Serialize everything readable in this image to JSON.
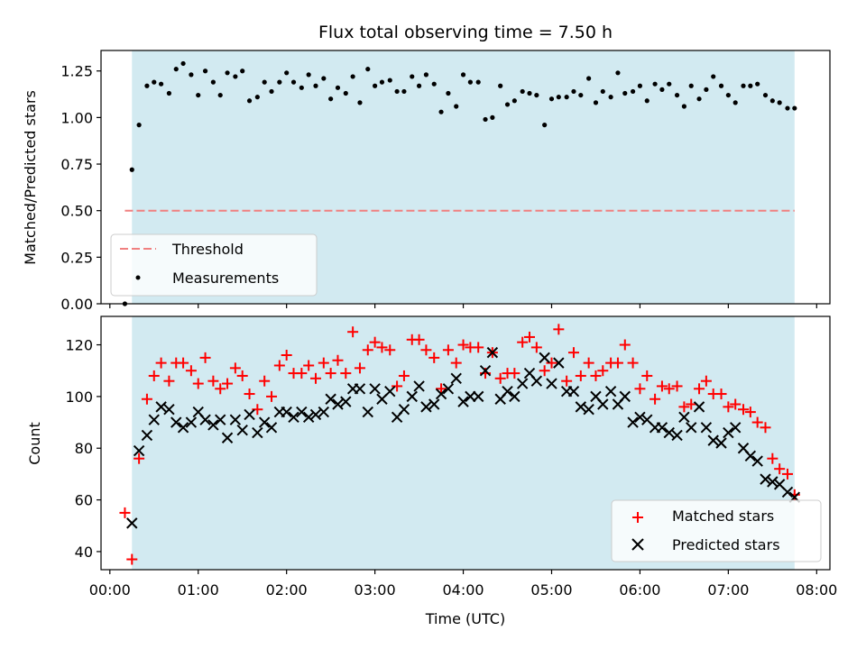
{
  "chart_data": [
    {
      "type": "scatter",
      "title": "Flux total observing time = 7.50 h",
      "xlabel": "",
      "ylabel": "Matched/Predicted stars",
      "xlim": [
        -0.1,
        8.15
      ],
      "ylim": [
        0.0,
        1.36
      ],
      "span": [
        0.25,
        7.75
      ],
      "yticks": [
        0.0,
        0.25,
        0.5,
        0.75,
        1.0,
        1.25
      ],
      "ytick_labels": [
        "0.00",
        "0.25",
        "0.50",
        "0.75",
        "1.00",
        "1.25"
      ],
      "threshold": {
        "name": "Threshold",
        "value": 0.5,
        "x": [
          0.17,
          7.75
        ],
        "color": "#f08080"
      },
      "series": [
        {
          "name": "Measurements",
          "color": "#000000",
          "x": [
            0.17,
            0.25,
            0.33,
            0.42,
            0.5,
            0.58,
            0.67,
            0.75,
            0.83,
            0.92,
            1.0,
            1.08,
            1.17,
            1.25,
            1.33,
            1.42,
            1.5,
            1.58,
            1.67,
            1.75,
            1.83,
            1.92,
            2.0,
            2.08,
            2.17,
            2.25,
            2.33,
            2.42,
            2.5,
            2.58,
            2.67,
            2.75,
            2.83,
            2.92,
            3.0,
            3.08,
            3.17,
            3.25,
            3.33,
            3.42,
            3.5,
            3.58,
            3.67,
            3.75,
            3.83,
            3.92,
            4.0,
            4.08,
            4.17,
            4.25,
            4.33,
            4.42,
            4.5,
            4.58,
            4.67,
            4.75,
            4.83,
            4.92,
            5.0,
            5.08,
            5.17,
            5.25,
            5.33,
            5.42,
            5.5,
            5.58,
            5.67,
            5.75,
            5.83,
            5.92,
            6.0,
            6.08,
            6.17,
            6.25,
            6.33,
            6.42,
            6.5,
            6.58,
            6.67,
            6.75,
            6.83,
            6.92,
            7.0,
            7.08,
            7.17,
            7.25,
            7.33,
            7.42,
            7.5,
            7.58,
            7.67,
            7.75
          ],
          "y": [
            0.0,
            0.72,
            0.96,
            1.17,
            1.19,
            1.18,
            1.13,
            1.26,
            1.29,
            1.23,
            1.12,
            1.25,
            1.19,
            1.12,
            1.24,
            1.22,
            1.25,
            1.09,
            1.11,
            1.19,
            1.14,
            1.19,
            1.24,
            1.19,
            1.16,
            1.23,
            1.17,
            1.21,
            1.1,
            1.16,
            1.13,
            1.22,
            1.08,
            1.26,
            1.17,
            1.19,
            1.2,
            1.14,
            1.14,
            1.22,
            1.17,
            1.23,
            1.18,
            1.03,
            1.13,
            1.06,
            1.23,
            1.19,
            1.19,
            0.99,
            1.0,
            1.17,
            1.07,
            1.09,
            1.14,
            1.13,
            1.12,
            0.96,
            1.1,
            1.11,
            1.11,
            1.14,
            1.12,
            1.21,
            1.08,
            1.14,
            1.11,
            1.24,
            1.13,
            1.14,
            1.17,
            1.09,
            1.18,
            1.15,
            1.18,
            1.12,
            1.06,
            1.17,
            1.1,
            1.15,
            1.22,
            1.17,
            1.12,
            1.08,
            1.17,
            1.17,
            1.18,
            1.12,
            1.09,
            1.08,
            1.05,
            1.05
          ]
        }
      ],
      "legend": [
        "Threshold",
        "Measurements"
      ],
      "legend_location": "lower-left",
      "span_color": "#add8e6"
    },
    {
      "type": "scatter",
      "title": "",
      "xlabel": "Time (UTC)",
      "ylabel": "Count",
      "xlim": [
        -0.1,
        8.15
      ],
      "ylim": [
        33,
        131
      ],
      "span": [
        0.25,
        7.75
      ],
      "xticks": [
        0,
        1,
        2,
        3,
        4,
        5,
        6,
        7,
        8
      ],
      "xtick_labels": [
        "00:00",
        "01:00",
        "02:00",
        "03:00",
        "04:00",
        "05:00",
        "06:00",
        "07:00",
        "08:00"
      ],
      "yticks": [
        40,
        60,
        80,
        100,
        120
      ],
      "ytick_labels": [
        "40",
        "60",
        "80",
        "100",
        "120"
      ],
      "series": [
        {
          "name": "Matched stars",
          "marker": "plus",
          "color": "#ff0000",
          "x": [
            0.17,
            0.25,
            0.33,
            0.42,
            0.5,
            0.58,
            0.67,
            0.75,
            0.83,
            0.92,
            1.0,
            1.08,
            1.17,
            1.25,
            1.33,
            1.42,
            1.5,
            1.58,
            1.67,
            1.75,
            1.83,
            1.92,
            2.0,
            2.08,
            2.17,
            2.25,
            2.33,
            2.42,
            2.5,
            2.58,
            2.67,
            2.75,
            2.83,
            2.92,
            3.0,
            3.08,
            3.17,
            3.25,
            3.33,
            3.42,
            3.5,
            3.58,
            3.67,
            3.75,
            3.83,
            3.92,
            4.0,
            4.08,
            4.17,
            4.25,
            4.33,
            4.42,
            4.5,
            4.58,
            4.67,
            4.75,
            4.83,
            4.92,
            5.0,
            5.08,
            5.17,
            5.25,
            5.33,
            5.42,
            5.5,
            5.58,
            5.67,
            5.75,
            5.83,
            5.92,
            6.0,
            6.08,
            6.17,
            6.25,
            6.33,
            6.42,
            6.5,
            6.58,
            6.67,
            6.75,
            6.83,
            6.92,
            7.0,
            7.08,
            7.17,
            7.25,
            7.33,
            7.42,
            7.5,
            7.58,
            7.67,
            7.75
          ],
          "y": [
            55,
            37,
            76,
            99,
            108,
            113,
            106,
            113,
            113,
            110,
            105,
            115,
            106,
            103,
            105,
            111,
            108,
            101,
            95,
            106,
            100,
            112,
            116,
            109,
            109,
            112,
            107,
            113,
            109,
            114,
            109,
            125,
            111,
            118,
            121,
            119,
            118,
            104,
            108,
            122,
            122,
            118,
            115,
            103,
            118,
            113,
            120,
            119,
            119,
            109,
            117,
            107,
            109,
            109,
            121,
            123,
            119,
            110,
            113,
            126,
            106,
            117,
            108,
            113,
            108,
            110,
            113,
            113,
            120,
            113,
            103,
            108,
            99,
            104,
            103,
            104,
            96,
            97,
            103,
            106,
            101,
            101,
            96,
            97,
            95,
            94,
            90,
            88,
            76,
            72,
            70,
            62
          ]
        },
        {
          "name": "Predicted stars",
          "marker": "x",
          "color": "#000000",
          "x": [
            0.25,
            0.33,
            0.42,
            0.5,
            0.58,
            0.67,
            0.75,
            0.83,
            0.92,
            1.0,
            1.08,
            1.17,
            1.25,
            1.33,
            1.42,
            1.5,
            1.58,
            1.67,
            1.75,
            1.83,
            1.92,
            2.0,
            2.08,
            2.17,
            2.25,
            2.33,
            2.42,
            2.5,
            2.58,
            2.67,
            2.75,
            2.83,
            2.92,
            3.0,
            3.08,
            3.17,
            3.25,
            3.33,
            3.42,
            3.5,
            3.58,
            3.67,
            3.75,
            3.83,
            3.92,
            4.0,
            4.08,
            4.17,
            4.25,
            4.33,
            4.42,
            4.5,
            4.58,
            4.67,
            4.75,
            4.83,
            4.92,
            5.0,
            5.08,
            5.17,
            5.25,
            5.33,
            5.42,
            5.5,
            5.58,
            5.67,
            5.75,
            5.83,
            5.92,
            6.0,
            6.08,
            6.17,
            6.25,
            6.33,
            6.42,
            6.5,
            6.58,
            6.67,
            6.75,
            6.83,
            6.92,
            7.0,
            7.08,
            7.17,
            7.25,
            7.33,
            7.42,
            7.5,
            7.58,
            7.67,
            7.75
          ],
          "y": [
            51,
            79,
            85,
            91,
            96,
            95,
            90,
            88,
            90,
            94,
            91,
            89,
            91,
            84,
            91,
            87,
            93,
            86,
            90,
            88,
            94,
            94,
            92,
            94,
            92,
            93,
            94,
            99,
            97,
            98,
            103,
            103,
            94,
            103,
            99,
            102,
            92,
            95,
            100,
            104,
            96,
            97,
            101,
            103,
            107,
            98,
            100,
            100,
            110,
            117,
            99,
            102,
            100,
            105,
            109,
            106,
            115,
            105,
            113,
            102,
            102,
            96,
            95,
            100,
            97,
            102,
            97,
            100,
            90,
            92,
            91,
            88,
            88,
            86,
            85,
            92,
            88,
            96,
            88,
            83,
            82,
            86,
            88,
            80,
            77,
            75,
            68,
            67,
            66,
            63,
            61
          ]
        }
      ],
      "legend": [
        "Matched stars",
        "Predicted stars"
      ],
      "legend_location": "lower-right",
      "span_color": "#add8e6"
    }
  ]
}
